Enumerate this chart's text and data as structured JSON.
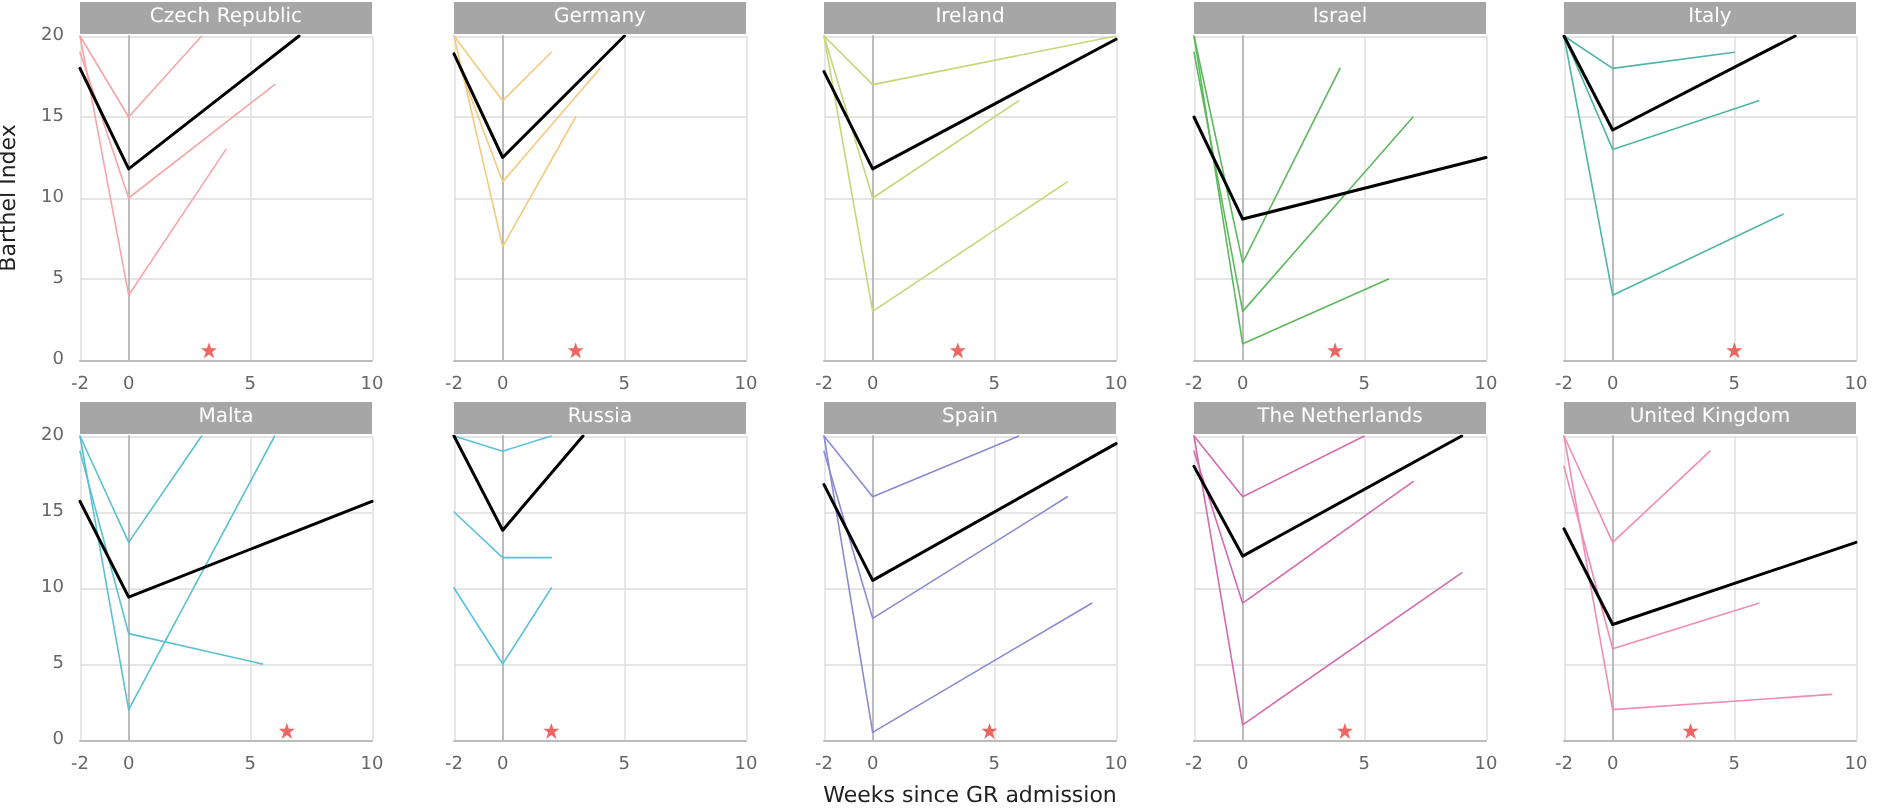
{
  "chart_data": [
    {
      "type": "line",
      "title": "Czech Republic",
      "ylabel": "Barthel Index",
      "xlim": [
        -2,
        10
      ],
      "ylim": [
        0,
        20
      ],
      "xticks": [
        -2,
        0,
        5,
        10
      ],
      "yticks": [
        0,
        5,
        10,
        15,
        20
      ],
      "grid": true,
      "marker": "none",
      "series": [
        {
          "color": "#f4a6a6",
          "x": [
            -2,
            0,
            4
          ],
          "values": [
            20,
            4,
            13
          ]
        },
        {
          "color": "#f4a6a6",
          "x": [
            -2,
            0,
            6
          ],
          "values": [
            19,
            10,
            17
          ]
        },
        {
          "color": "#f4a6a6",
          "x": [
            -2,
            0,
            3
          ],
          "values": [
            20,
            15,
            20
          ]
        },
        {
          "color": "#000000",
          "x": [
            -2,
            0,
            7
          ],
          "values": [
            18,
            11.8,
            20
          ]
        },
        {
          "type": "scatter",
          "marker": "star",
          "color": "#e8403a",
          "x": [
            3.3
          ],
          "values": [
            0.6
          ]
        }
      ]
    },
    {
      "type": "line",
      "title": "Germany",
      "xlim": [
        -2,
        10
      ],
      "ylim": [
        0,
        20
      ],
      "xticks": [
        -2,
        0,
        5,
        10
      ],
      "yticks": [
        0,
        5,
        10,
        15,
        20
      ],
      "grid": true,
      "marker": "none",
      "tick_labels": "x",
      "series": [
        {
          "color": "#f5c97e",
          "x": [
            -2,
            0,
            3
          ],
          "values": [
            20,
            7,
            15
          ]
        },
        {
          "color": "#f5c97e",
          "x": [
            -2,
            0,
            4
          ],
          "values": [
            19,
            11,
            18
          ]
        },
        {
          "color": "#f5c97e",
          "x": [
            -2,
            0,
            2
          ],
          "values": [
            20,
            16,
            19
          ]
        },
        {
          "color": "#000000",
          "x": [
            -2,
            0,
            5
          ],
          "values": [
            18.9,
            12.5,
            20
          ]
        },
        {
          "type": "scatter",
          "marker": "star",
          "color": "#e8403a",
          "x": [
            3
          ],
          "values": [
            0.6
          ]
        }
      ]
    },
    {
      "type": "line",
      "title": "Ireland",
      "xlim": [
        -2,
        10
      ],
      "ylim": [
        0,
        20
      ],
      "xticks": [
        -2,
        0,
        5,
        10
      ],
      "yticks": [
        0,
        5,
        10,
        15,
        20
      ],
      "grid": true,
      "marker": "none",
      "tick_labels": "x",
      "series": [
        {
          "color": "#c8d67a",
          "x": [
            -2,
            0,
            8
          ],
          "values": [
            20,
            3,
            11
          ]
        },
        {
          "color": "#c8d67a",
          "x": [
            -2,
            0,
            6
          ],
          "values": [
            20,
            10,
            16
          ]
        },
        {
          "color": "#c8d67a",
          "x": [
            -2,
            0,
            10
          ],
          "values": [
            20,
            17,
            20
          ]
        },
        {
          "color": "#000000",
          "x": [
            -2,
            0,
            10
          ],
          "values": [
            17.8,
            11.8,
            19.8
          ]
        },
        {
          "type": "scatter",
          "marker": "star",
          "color": "#e8403a",
          "x": [
            3.5
          ],
          "values": [
            0.6
          ]
        }
      ]
    },
    {
      "type": "line",
      "title": "Israel",
      "xlim": [
        -2,
        10
      ],
      "ylim": [
        0,
        20
      ],
      "xticks": [
        -2,
        0,
        5,
        10
      ],
      "yticks": [
        0,
        5,
        10,
        15,
        20
      ],
      "grid": true,
      "marker": "none",
      "tick_labels": "x",
      "series": [
        {
          "color": "#5cb85c",
          "x": [
            -2,
            0,
            6
          ],
          "values": [
            20,
            1,
            5
          ]
        },
        {
          "color": "#5cb85c",
          "x": [
            -2,
            0,
            4
          ],
          "values": [
            20,
            6,
            18
          ]
        },
        {
          "color": "#5cb85c",
          "x": [
            -2,
            0,
            7
          ],
          "values": [
            19,
            3,
            15
          ]
        },
        {
          "color": "#000000",
          "x": [
            -2,
            0,
            10
          ],
          "values": [
            15,
            8.7,
            12.5
          ]
        },
        {
          "type": "scatter",
          "marker": "star",
          "color": "#e8403a",
          "x": [
            3.8
          ],
          "values": [
            0.6
          ]
        }
      ]
    },
    {
      "type": "line",
      "title": "Italy",
      "xlim": [
        -2,
        10
      ],
      "ylim": [
        0,
        20
      ],
      "xticks": [
        -2,
        0,
        5,
        10
      ],
      "yticks": [
        0,
        5,
        10,
        15,
        20
      ],
      "grid": true,
      "marker": "none",
      "tick_labels": "x",
      "series": [
        {
          "color": "#4fb5a6",
          "x": [
            -2,
            0,
            7
          ],
          "values": [
            20,
            4,
            9
          ]
        },
        {
          "color": "#4fb5a6",
          "x": [
            -2,
            0,
            6
          ],
          "values": [
            20,
            13,
            16
          ]
        },
        {
          "color": "#4fb5a6",
          "x": [
            -2,
            0,
            5
          ],
          "values": [
            20,
            18,
            19
          ]
        },
        {
          "color": "#000000",
          "x": [
            -2,
            0,
            7.5
          ],
          "values": [
            20,
            14.2,
            20
          ]
        },
        {
          "type": "scatter",
          "marker": "star",
          "color": "#e8403a",
          "x": [
            5
          ],
          "values": [
            0.6
          ]
        }
      ]
    },
    {
      "type": "line",
      "title": "Malta",
      "xlim": [
        -2,
        10
      ],
      "ylim": [
        0,
        20
      ],
      "xticks": [
        -2,
        0,
        5,
        10
      ],
      "yticks": [
        0,
        5,
        10,
        15,
        20
      ],
      "grid": true,
      "marker": "none",
      "series": [
        {
          "color": "#5bc0d0",
          "x": [
            -2,
            0,
            6
          ],
          "values": [
            20,
            2,
            20
          ]
        },
        {
          "color": "#5bc0d0",
          "x": [
            -2,
            0,
            5.5
          ],
          "values": [
            19,
            7,
            5
          ]
        },
        {
          "color": "#5bc0d0",
          "x": [
            -2,
            0,
            3
          ],
          "values": [
            20,
            13,
            20
          ]
        },
        {
          "color": "#000000",
          "x": [
            -2,
            0,
            10
          ],
          "values": [
            15.7,
            9.4,
            15.7
          ]
        },
        {
          "type": "scatter",
          "marker": "star",
          "color": "#e8403a",
          "x": [
            6.5
          ],
          "values": [
            0.6
          ]
        }
      ]
    },
    {
      "type": "line",
      "title": "Russia",
      "xlim": [
        -2,
        10
      ],
      "ylim": [
        0,
        20
      ],
      "xticks": [
        -2,
        0,
        5,
        10
      ],
      "yticks": [
        0,
        5,
        10,
        15,
        20
      ],
      "grid": true,
      "marker": "none",
      "tick_labels": "x",
      "series": [
        {
          "color": "#5bc0de",
          "x": [
            -2,
            0,
            2
          ],
          "values": [
            20,
            19,
            20
          ]
        },
        {
          "color": "#5bc0de",
          "x": [
            -2,
            0,
            2
          ],
          "values": [
            15,
            12,
            12
          ]
        },
        {
          "color": "#5bc0de",
          "x": [
            -2,
            0,
            2
          ],
          "values": [
            10,
            5,
            10
          ]
        },
        {
          "color": "#000000",
          "x": [
            -2,
            0,
            3.3
          ],
          "values": [
            20,
            13.8,
            20
          ]
        },
        {
          "type": "scatter",
          "marker": "star",
          "color": "#e8403a",
          "x": [
            2
          ],
          "values": [
            0.6
          ]
        }
      ]
    },
    {
      "type": "line",
      "title": "Spain",
      "xlabel": "Weeks since GR admission",
      "xlim": [
        -2,
        10
      ],
      "ylim": [
        0,
        20
      ],
      "xticks": [
        -2,
        0,
        5,
        10
      ],
      "yticks": [
        0,
        5,
        10,
        15,
        20
      ],
      "grid": true,
      "marker": "none",
      "tick_labels": "x",
      "series": [
        {
          "color": "#8a8ad0",
          "x": [
            -2,
            0,
            9
          ],
          "values": [
            20,
            0.5,
            9
          ]
        },
        {
          "color": "#8a8ad0",
          "x": [
            -2,
            0,
            8
          ],
          "values": [
            19,
            8,
            16
          ]
        },
        {
          "color": "#8a8ad0",
          "x": [
            -2,
            0,
            6
          ],
          "values": [
            20,
            16,
            20
          ]
        },
        {
          "color": "#000000",
          "x": [
            -2,
            0,
            10
          ],
          "values": [
            16.8,
            10.5,
            19.5
          ]
        },
        {
          "type": "scatter",
          "marker": "star",
          "color": "#e8403a",
          "x": [
            4.8
          ],
          "values": [
            0.6
          ]
        }
      ]
    },
    {
      "type": "line",
      "title": "The Netherlands",
      "xlim": [
        -2,
        10
      ],
      "ylim": [
        0,
        20
      ],
      "xticks": [
        -2,
        0,
        5,
        10
      ],
      "yticks": [
        0,
        5,
        10,
        15,
        20
      ],
      "grid": true,
      "marker": "none",
      "tick_labels": "x",
      "series": [
        {
          "color": "#d36bb0",
          "x": [
            -2,
            0,
            9
          ],
          "values": [
            20,
            1,
            11
          ]
        },
        {
          "color": "#d36bb0",
          "x": [
            -2,
            0,
            7
          ],
          "values": [
            19,
            9,
            17
          ]
        },
        {
          "color": "#d36bb0",
          "x": [
            -2,
            0,
            5
          ],
          "values": [
            20,
            16,
            20
          ]
        },
        {
          "color": "#000000",
          "x": [
            -2,
            0,
            9
          ],
          "values": [
            18,
            12.1,
            20
          ]
        },
        {
          "type": "scatter",
          "marker": "star",
          "color": "#e8403a",
          "x": [
            4.2
          ],
          "values": [
            0.6
          ]
        }
      ]
    },
    {
      "type": "line",
      "title": "United Kingdom",
      "xlim": [
        -2,
        10
      ],
      "ylim": [
        0,
        20
      ],
      "xticks": [
        -2,
        0,
        5,
        10
      ],
      "yticks": [
        0,
        5,
        10,
        15,
        20
      ],
      "grid": true,
      "marker": "none",
      "tick_labels": "x",
      "series": [
        {
          "color": "#f08cb5",
          "x": [
            -2,
            0,
            9
          ],
          "values": [
            20,
            2,
            3
          ]
        },
        {
          "color": "#f08cb5",
          "x": [
            -2,
            0,
            6
          ],
          "values": [
            18,
            6,
            9
          ]
        },
        {
          "color": "#f08cb5",
          "x": [
            -2,
            0,
            4
          ],
          "values": [
            20,
            13,
            19
          ]
        },
        {
          "color": "#000000",
          "x": [
            -2,
            0,
            10
          ],
          "values": [
            13.9,
            7.6,
            13
          ]
        },
        {
          "type": "scatter",
          "marker": "star",
          "color": "#e8403a",
          "x": [
            3.2
          ],
          "values": [
            0.6
          ]
        }
      ]
    }
  ]
}
